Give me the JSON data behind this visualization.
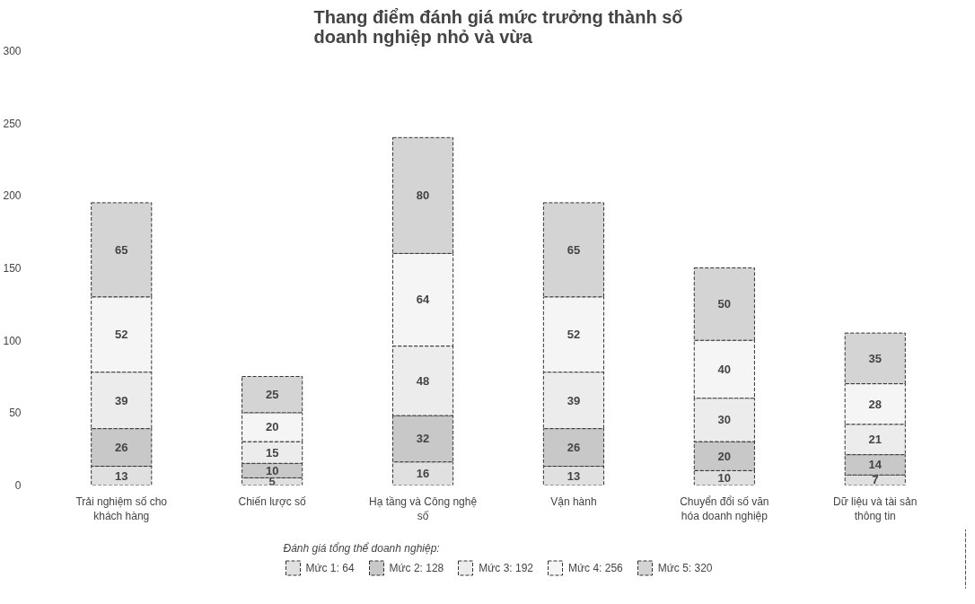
{
  "chart_data": {
    "type": "bar",
    "stacked": true,
    "title": "Thang điểm đánh giá mức trưởng thành số\ndoanh nghiệp nhỏ và vừa",
    "categories": [
      "Trải nghiệm số cho khách hàng",
      "Chiến lược số",
      "Hạ tầng và Công nghệ số",
      "Vận hành",
      "Chuyển đổi số văn hóa doanh nghiệp",
      "Dữ liệu và tài sản thông tin"
    ],
    "series": [
      {
        "name": "Mức 1: 64",
        "color": "#e0e0e0",
        "values": [
          13,
          5,
          16,
          13,
          10,
          7
        ]
      },
      {
        "name": "Mức 2: 128",
        "color": "#c8c8c8",
        "values": [
          26,
          10,
          32,
          26,
          20,
          14
        ]
      },
      {
        "name": "Mức 3: 192",
        "color": "#ececec",
        "values": [
          39,
          15,
          48,
          39,
          30,
          21
        ]
      },
      {
        "name": "Mức 4: 256",
        "color": "#f5f5f5",
        "values": [
          52,
          20,
          64,
          52,
          40,
          28
        ]
      },
      {
        "name": "Mức 5: 320",
        "color": "#d4d4d4",
        "values": [
          65,
          25,
          80,
          65,
          50,
          35
        ]
      }
    ],
    "legend_title": "Đánh giá tổng thể doanh nghiệp:",
    "legend": "bottom",
    "ylim": [
      0,
      300
    ],
    "yticks": [
      0,
      50,
      100,
      150,
      200,
      250,
      300
    ],
    "grid": false,
    "data_labels": true
  }
}
